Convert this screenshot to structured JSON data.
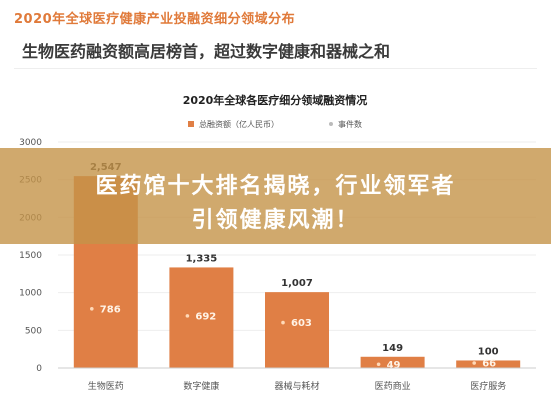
{
  "header": {
    "title": "2020年全球医疗健康产业投融资细分领域分布",
    "subtitle": "生物医药融资额高居榜首，超过数字健康和器械之和"
  },
  "overlay": {
    "line1": "医药馆十大排名揭晓，行业领军者",
    "line2": "引领健康风潮！"
  },
  "colors": {
    "bar": "#e07f45",
    "bar_fill_light": "#ee9a66",
    "point": "#ffd9b8",
    "axis_text": "#555555",
    "grid": "#eeeeee",
    "title": "#222222"
  },
  "chart_data": {
    "type": "bar",
    "title": "2020年全球各医疗细分领域融资情况",
    "categories": [
      "生物医药",
      "数字健康",
      "器械与耗材",
      "医药商业",
      "医疗服务"
    ],
    "series": [
      {
        "name": "总融资额（亿人民币）",
        "values": [
          2547,
          1335,
          1007,
          149,
          100
        ],
        "value_labels": [
          "2,547",
          "1,335",
          "1,007",
          "149",
          "100"
        ]
      },
      {
        "name": "事件数",
        "values": [
          786,
          692,
          603,
          49,
          66
        ],
        "value_labels": [
          "786",
          "692",
          "603",
          "49",
          "66"
        ]
      }
    ],
    "y_ticks": [
      "0",
      "500",
      "1000",
      "1500",
      "2000",
      "2500",
      "3000"
    ],
    "ylim": [
      0,
      3000
    ],
    "grid": true,
    "legend_position": "top-center"
  }
}
